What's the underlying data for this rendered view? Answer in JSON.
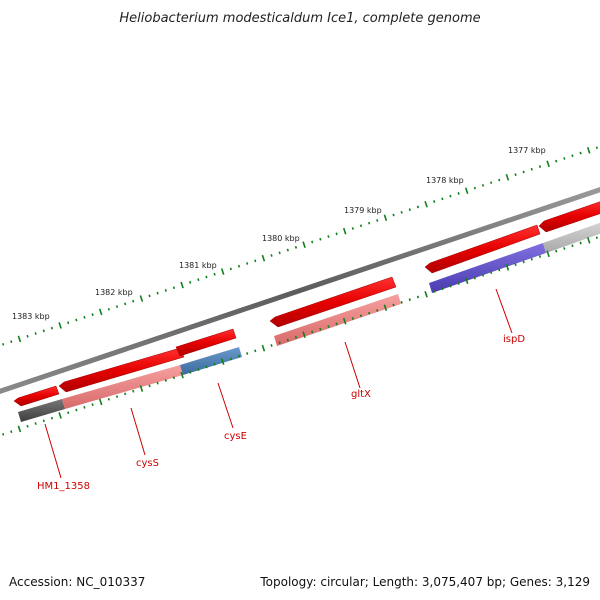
{
  "title": "Heliobacterium modesticaldum Ice1, complete genome",
  "footer": {
    "accession": "Accession: NC_010337",
    "summary": "Topology: circular; Length: 3,075,407 bp; Genes: 3,129"
  },
  "ticks": [
    {
      "label": "1383 kbp"
    },
    {
      "label": "1382 kbp"
    },
    {
      "label": "1381 kbp"
    },
    {
      "label": "1380 kbp"
    },
    {
      "label": "1379 kbp"
    },
    {
      "label": "1378 kbp"
    },
    {
      "label": "1377 kbp"
    }
  ],
  "genes": [
    {
      "label": "HM1_1358"
    },
    {
      "label": "cysS"
    },
    {
      "label": "cysE"
    },
    {
      "label": "gltX"
    },
    {
      "label": "ispD"
    }
  ],
  "colors": {
    "gene_forward": "#ee0000",
    "gene_translucent": "#f08080",
    "cds_blue": "#4d7fb5",
    "cds_purple": "#6655cc",
    "cds_dark": "#555555",
    "cds_light": "#bbbbbb",
    "backbone": "#777777",
    "tick": "#11801a",
    "label": "#cc0000"
  }
}
